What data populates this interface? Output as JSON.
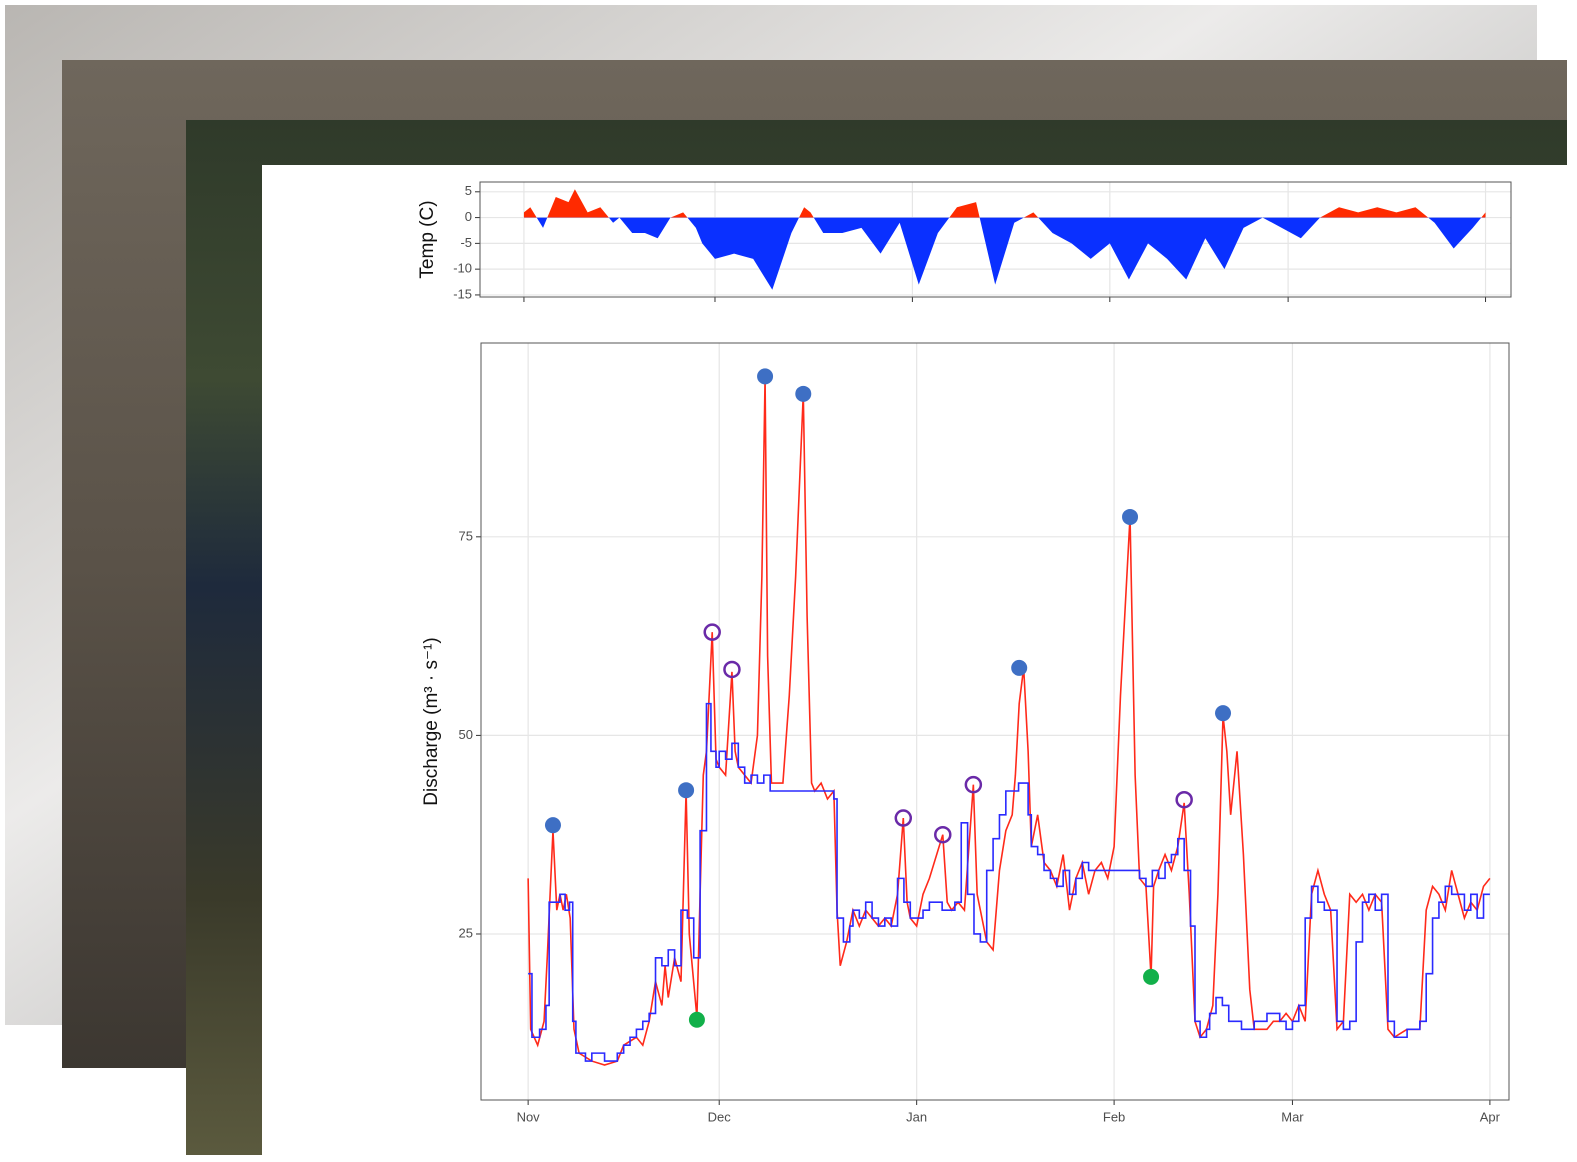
{
  "chart_data": [
    {
      "type": "area",
      "y_label": "Temp (C)",
      "pos_color": "#ff2a00",
      "neg_color": "#0a30ff",
      "xlim": [
        -6.9,
        155
      ],
      "ylim": [
        -15.4,
        6.9
      ],
      "yticks": [
        5,
        0,
        -5,
        -10,
        -15
      ],
      "xticks": [
        0,
        30,
        61,
        92,
        120,
        151
      ],
      "grid": true,
      "x": [
        0,
        1,
        3,
        5,
        7,
        8,
        10,
        12,
        14,
        15,
        17,
        19,
        21,
        23,
        25,
        27,
        28,
        30,
        33,
        36,
        39,
        42,
        44,
        45,
        47,
        50,
        53,
        56,
        59,
        62,
        65,
        68,
        71,
        74,
        77,
        80,
        83,
        86,
        89,
        92,
        95,
        98,
        101,
        104,
        107,
        110,
        113,
        116,
        119,
        122,
        125,
        128,
        131,
        134,
        137,
        140,
        143,
        146,
        149,
        151
      ],
      "values": [
        1,
        2,
        -2,
        4,
        3,
        5.5,
        1,
        2,
        -1,
        0,
        -3,
        -3,
        -4,
        0,
        1,
        -2,
        -5,
        -8,
        -7,
        -8,
        -14,
        -3,
        2,
        1,
        -3,
        -3,
        -2,
        -7,
        -1,
        -13,
        -3,
        2,
        3,
        -13,
        -1,
        1,
        -3,
        -5,
        -8,
        -5,
        -12,
        -5,
        -8,
        -12,
        -4,
        -10,
        -2,
        0,
        -2,
        -4,
        0,
        2,
        1,
        2,
        1,
        2,
        -1,
        -6,
        -2,
        1
      ]
    },
    {
      "type": "line",
      "y_label": "Discharge (m³ · s⁻¹)",
      "xlim": [
        -7.4,
        154
      ],
      "ylim": [
        4.1,
        99.4
      ],
      "yticks": [
        25,
        50,
        75
      ],
      "grid": true,
      "xticks": [
        {
          "value": 0,
          "label": "Nov"
        },
        {
          "value": 30,
          "label": "Dec"
        },
        {
          "value": 61,
          "label": "Jan"
        },
        {
          "value": 92,
          "label": "Feb"
        },
        {
          "value": 120,
          "label": "Mar"
        },
        {
          "value": 151,
          "label": "Apr"
        }
      ],
      "series": [
        {
          "mode": "line",
          "color": "#ff2a1a",
          "x": [
            0,
            0.4,
            1.5,
            2.5,
            3,
            3.9,
            4.5,
            5,
            5.5,
            6,
            6.6,
            7.2,
            8,
            10,
            12,
            14,
            15,
            17,
            18,
            19,
            20,
            21,
            21.5,
            22,
            23,
            24,
            24.8,
            25.3,
            26.5,
            27,
            27.5,
            28,
            28.9,
            29.5,
            30,
            31,
            32,
            32.5,
            33,
            34,
            35,
            36,
            36.7,
            37.2,
            37.6,
            38.2,
            39,
            40,
            41,
            42,
            43.2,
            43.8,
            44.5,
            45,
            46,
            47,
            48,
            48.5,
            49,
            50,
            51,
            52,
            53,
            54,
            55,
            56,
            57,
            58,
            58.9,
            59.5,
            60,
            61,
            62,
            63,
            65.1,
            65.8,
            66.5,
            67.5,
            68.5,
            69.9,
            70.5,
            71,
            72,
            73,
            74,
            75,
            76,
            76.5,
            77.1,
            77.8,
            78.5,
            79,
            80,
            81,
            82,
            83,
            84,
            85,
            86,
            87,
            88,
            89,
            90,
            91,
            92,
            93,
            94.5,
            95.3,
            96,
            97,
            97.8,
            98.2,
            99,
            100,
            101,
            102,
            103,
            103.8,
            104.7,
            105.5,
            106.5,
            107.5,
            108.3,
            109.1,
            109.7,
            110.3,
            111.3,
            112.3,
            113.3,
            114,
            115,
            116,
            117,
            118,
            119,
            120,
            121,
            122,
            123,
            124,
            125,
            126,
            127,
            128,
            129,
            130,
            131,
            132,
            133,
            134,
            135,
            136,
            138,
            140,
            141,
            142,
            143,
            144,
            145,
            146,
            147,
            148,
            149,
            150,
            151
          ],
          "values": [
            32,
            13,
            11,
            14,
            22,
            38,
            28,
            30,
            28,
            30,
            27,
            13,
            10,
            9,
            8.5,
            9,
            11,
            12,
            11,
            14,
            19,
            16,
            21,
            17,
            22,
            19,
            43,
            25,
            14.5,
            30,
            45,
            48,
            63,
            47,
            46,
            45,
            58,
            48,
            46,
            45,
            44,
            50,
            70,
            95,
            60,
            44,
            44,
            44,
            55,
            70,
            93,
            65,
            44,
            43,
            44,
            42,
            43,
            28,
            21,
            24,
            28,
            26,
            28,
            27,
            26,
            27,
            26,
            30,
            39.6,
            29,
            27,
            26,
            30,
            32,
            37.5,
            29,
            28,
            29,
            28,
            43.8,
            30,
            28,
            24,
            23,
            33,
            38,
            40,
            45,
            54,
            58.5,
            48,
            36,
            40,
            34,
            33,
            31,
            35,
            28,
            32,
            34,
            30,
            33,
            34,
            32,
            36,
            55,
            77.5,
            45,
            32,
            31,
            19.6,
            31,
            33,
            35,
            33,
            36,
            41.5,
            30,
            14,
            12,
            13,
            16,
            30,
            52.5,
            48,
            40,
            48,
            35,
            18,
            13,
            13,
            13,
            14,
            14,
            15,
            14,
            16,
            14,
            30,
            33,
            30,
            28,
            13,
            14,
            30,
            29,
            30,
            28,
            30,
            29,
            13,
            12,
            13,
            13,
            28,
            31,
            30,
            28,
            33,
            30,
            27,
            29,
            28,
            31,
            32
          ]
        },
        {
          "mode": "step",
          "color": "#2a2aff",
          "x": [
            0,
            0.6,
            1.8,
            2.8,
            3.3,
            5,
            5.8,
            6.5,
            7,
            7.5,
            9,
            10,
            12,
            14,
            15,
            16,
            17,
            18,
            19,
            20,
            21,
            22,
            23,
            24,
            25,
            26,
            27,
            28,
            28.7,
            29.5,
            30,
            31,
            32,
            33,
            34,
            35,
            36,
            37,
            38,
            41,
            47,
            48,
            48.5,
            49.5,
            50.5,
            51,
            52,
            53,
            54,
            55,
            56,
            57,
            58,
            59,
            60,
            62,
            63,
            65,
            67,
            68,
            69,
            70,
            71,
            72,
            73,
            74,
            75,
            77,
            78.5,
            79,
            80,
            81,
            82,
            83,
            84,
            85,
            86,
            87,
            88,
            90,
            92,
            96,
            97,
            98,
            99,
            100,
            101,
            102,
            103,
            104,
            104.7,
            105.5,
            106.5,
            107,
            108,
            109,
            110,
            112,
            114,
            116,
            118,
            119,
            120,
            121,
            122,
            123,
            124,
            125,
            127,
            128,
            129,
            130,
            131,
            132,
            133,
            134,
            135,
            136,
            138,
            140,
            141,
            142,
            143,
            144,
            145,
            147,
            148,
            149,
            150,
            151
          ],
          "values": [
            20,
            12,
            13,
            16,
            29,
            30,
            28,
            29,
            14,
            10,
            9,
            10,
            9,
            10,
            11,
            12,
            13,
            14,
            15,
            22,
            21,
            23,
            21,
            28,
            27,
            22,
            38,
            54,
            48,
            46,
            48,
            47,
            49,
            46,
            44,
            45,
            44,
            45,
            43,
            43,
            43,
            42,
            27,
            24,
            26,
            28,
            27,
            29,
            27,
            26,
            27,
            26,
            32,
            29,
            27,
            28,
            29,
            28,
            29,
            39,
            30,
            25,
            24,
            33,
            37,
            40,
            43,
            44,
            40,
            36,
            35,
            33,
            32,
            31,
            33,
            30,
            32,
            34,
            33,
            33,
            33,
            32,
            31,
            33,
            32,
            34,
            35,
            37,
            33,
            26,
            14,
            12,
            13,
            15,
            17,
            16,
            14,
            13,
            14,
            15,
            14,
            13,
            14,
            16,
            27,
            31,
            29,
            28,
            14,
            13,
            14,
            24,
            29,
            30,
            28,
            30,
            14,
            12,
            13,
            14,
            20,
            27,
            29,
            31,
            30,
            28,
            30,
            27,
            30,
            30
          ]
        },
        {
          "mode": "points",
          "marker": "filled",
          "color": "#3e6fc4",
          "x": [
            3.9,
            24.8,
            37.2,
            43.2,
            77.1,
            94.5,
            109.1
          ],
          "values": [
            38.7,
            43.1,
            95.2,
            93,
            58.5,
            77.5,
            52.8
          ]
        },
        {
          "mode": "points",
          "marker": "open",
          "color": "#6a2aa8",
          "x": [
            28.9,
            32,
            58.9,
            65.1,
            69.9,
            103
          ],
          "values": [
            63,
            58.3,
            39.6,
            37.5,
            43.8,
            41.9
          ]
        },
        {
          "mode": "points",
          "marker": "filled",
          "color": "#12b04a",
          "x": [
            26.5,
            97.8
          ],
          "values": [
            14.2,
            19.6
          ]
        }
      ]
    }
  ]
}
